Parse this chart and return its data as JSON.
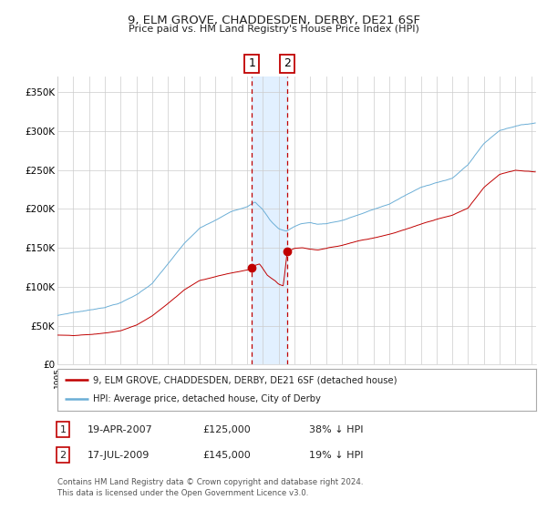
{
  "title": "9, ELM GROVE, CHADDESDEN, DERBY, DE21 6SF",
  "subtitle": "Price paid vs. HM Land Registry's House Price Index (HPI)",
  "ylim": [
    0,
    370000
  ],
  "xlim_start": 1995.0,
  "xlim_end": 2025.3,
  "yticks": [
    0,
    50000,
    100000,
    150000,
    200000,
    250000,
    300000,
    350000
  ],
  "ytick_labels": [
    "£0",
    "£50K",
    "£100K",
    "£150K",
    "£200K",
    "£250K",
    "£300K",
    "£350K"
  ],
  "hpi_color": "#6baed6",
  "price_color": "#c00000",
  "background_color": "#ffffff",
  "grid_color": "#cccccc",
  "sale1_date": 2007.3,
  "sale1_price": 125000,
  "sale1_label": "1",
  "sale2_date": 2009.54,
  "sale2_price": 145000,
  "sale2_label": "2",
  "shade_start": 2007.3,
  "shade_end": 2009.54,
  "legend_entries": [
    "9, ELM GROVE, CHADDESDEN, DERBY, DE21 6SF (detached house)",
    "HPI: Average price, detached house, City of Derby"
  ],
  "table_rows": [
    [
      "1",
      "19-APR-2007",
      "£125,000",
      "38% ↓ HPI"
    ],
    [
      "2",
      "17-JUL-2009",
      "£145,000",
      "19% ↓ HPI"
    ]
  ],
  "footer": "Contains HM Land Registry data © Crown copyright and database right 2024.\nThis data is licensed under the Open Government Licence v3.0.",
  "hpi_waypoints": [
    [
      1995.0,
      63000
    ],
    [
      1996.0,
      67000
    ],
    [
      1997.0,
      70000
    ],
    [
      1998.0,
      74000
    ],
    [
      1999.0,
      80000
    ],
    [
      2000.0,
      90000
    ],
    [
      2001.0,
      105000
    ],
    [
      2002.0,
      130000
    ],
    [
      2003.0,
      155000
    ],
    [
      2004.0,
      175000
    ],
    [
      2005.0,
      185000
    ],
    [
      2006.0,
      196000
    ],
    [
      2007.0,
      203000
    ],
    [
      2007.5,
      210000
    ],
    [
      2008.0,
      200000
    ],
    [
      2008.5,
      185000
    ],
    [
      2009.0,
      175000
    ],
    [
      2009.5,
      172000
    ],
    [
      2010.0,
      178000
    ],
    [
      2010.5,
      182000
    ],
    [
      2011.0,
      183000
    ],
    [
      2011.5,
      181000
    ],
    [
      2012.0,
      182000
    ],
    [
      2013.0,
      186000
    ],
    [
      2014.0,
      193000
    ],
    [
      2015.0,
      200000
    ],
    [
      2016.0,
      207000
    ],
    [
      2017.0,
      218000
    ],
    [
      2018.0,
      228000
    ],
    [
      2019.0,
      235000
    ],
    [
      2020.0,
      240000
    ],
    [
      2021.0,
      258000
    ],
    [
      2022.0,
      285000
    ],
    [
      2023.0,
      302000
    ],
    [
      2024.0,
      308000
    ],
    [
      2025.25,
      312000
    ]
  ],
  "price_waypoints": [
    [
      1995.0,
      38000
    ],
    [
      1996.0,
      37000
    ],
    [
      1997.0,
      38000
    ],
    [
      1998.0,
      40000
    ],
    [
      1999.0,
      43000
    ],
    [
      2000.0,
      50000
    ],
    [
      2001.0,
      62000
    ],
    [
      2002.0,
      78000
    ],
    [
      2003.0,
      95000
    ],
    [
      2004.0,
      108000
    ],
    [
      2005.0,
      113000
    ],
    [
      2006.0,
      118000
    ],
    [
      2007.0,
      122000
    ],
    [
      2007.3,
      125000
    ],
    [
      2007.5,
      128000
    ],
    [
      2007.8,
      130000
    ],
    [
      2008.3,
      115000
    ],
    [
      2008.8,
      108000
    ],
    [
      2009.0,
      104000
    ],
    [
      2009.3,
      102000
    ],
    [
      2009.54,
      145000
    ],
    [
      2009.8,
      148000
    ],
    [
      2010.0,
      150000
    ],
    [
      2010.5,
      151000
    ],
    [
      2011.0,
      149000
    ],
    [
      2011.5,
      148000
    ],
    [
      2012.0,
      150000
    ],
    [
      2013.0,
      154000
    ],
    [
      2014.0,
      160000
    ],
    [
      2015.0,
      164000
    ],
    [
      2016.0,
      169000
    ],
    [
      2017.0,
      175000
    ],
    [
      2018.0,
      182000
    ],
    [
      2019.0,
      188000
    ],
    [
      2020.0,
      193000
    ],
    [
      2021.0,
      202000
    ],
    [
      2022.0,
      228000
    ],
    [
      2023.0,
      245000
    ],
    [
      2024.0,
      250000
    ],
    [
      2025.25,
      248000
    ]
  ]
}
